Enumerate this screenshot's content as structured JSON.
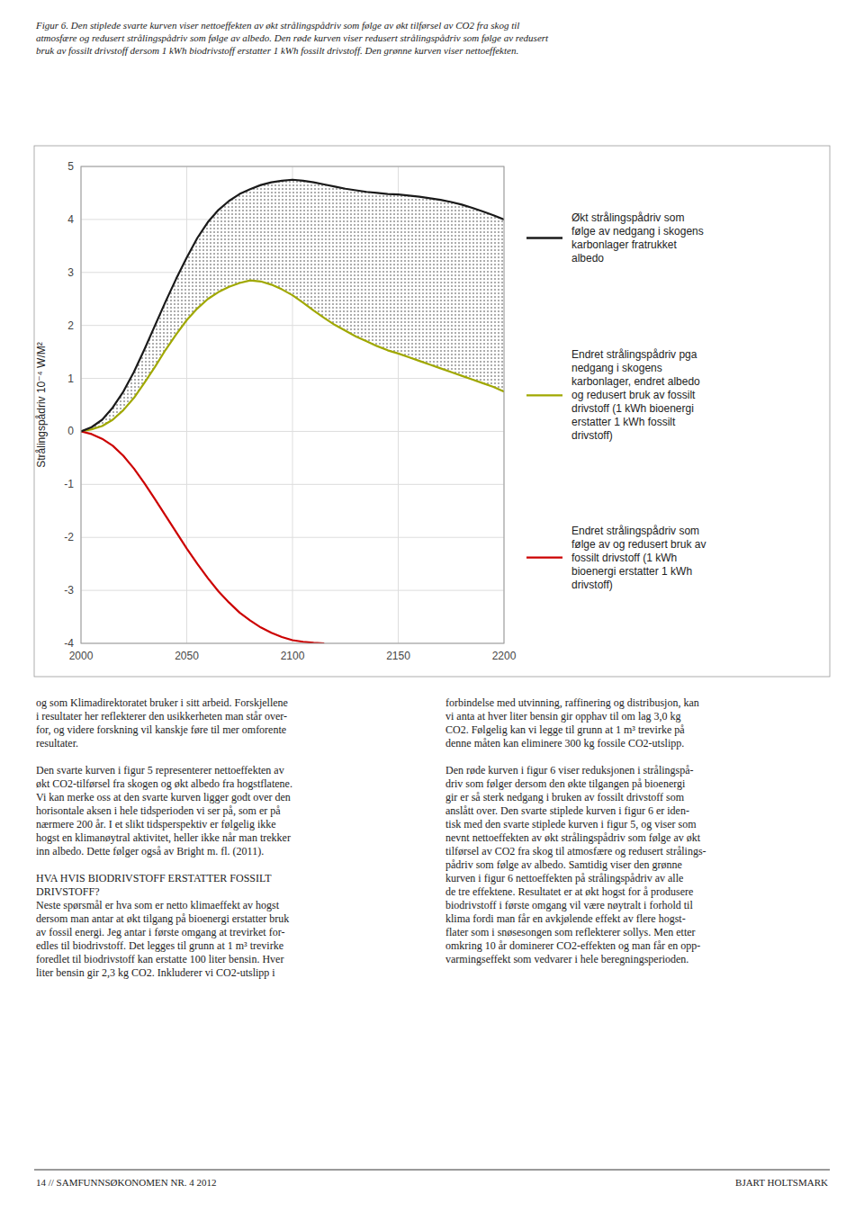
{
  "chart_data": {
    "type": "line",
    "title": "Figur 6. Den stiplede svarte kurven viser nettoeffekten av økt strålingspådriv som følge av økt tilførsel av CO2 fra skog til\natmosfære og redusert strålingspådriv som følge av albedo. Den røde kurven viser redusert strålingspådriv som følge av redusert\nbruk av fossilt drivstoff dersom 1 kWh biodrivstoff erstatter 1 kWh fossilt drivstoff. Den grønne kurven viser nettoeffekten.",
    "y_label": "Strålingspådriv 10⁻⁴ W/M²",
    "x": [
      2000,
      2005,
      2010,
      2015,
      2020,
      2025,
      2030,
      2035,
      2040,
      2045,
      2050,
      2055,
      2060,
      2065,
      2070,
      2075,
      2080,
      2085,
      2090,
      2095,
      2100,
      2105,
      2110,
      2115,
      2120,
      2125,
      2130,
      2135,
      2140,
      2145,
      2150,
      2155,
      2160,
      2165,
      2170,
      2175,
      2180,
      2185,
      2190,
      2195,
      2200
    ],
    "series": [
      {
        "name": "Økt strålingspådriv som\nfølge av nedgang i skogens\nkarbonlager fratrukket\nalbedo",
        "color": "#1a1a1a",
        "values": [
          0,
          0.08,
          0.22,
          0.45,
          0.75,
          1.12,
          1.55,
          2.0,
          2.45,
          2.88,
          3.28,
          3.65,
          3.95,
          4.18,
          4.35,
          4.48,
          4.57,
          4.65,
          4.7,
          4.73,
          4.75,
          4.73,
          4.7,
          4.66,
          4.62,
          4.58,
          4.55,
          4.52,
          4.5,
          4.48,
          4.47,
          4.45,
          4.43,
          4.4,
          4.37,
          4.33,
          4.28,
          4.22,
          4.15,
          4.08,
          4.0
        ]
      },
      {
        "name": "Endret strålingspådriv pga\nnedgang i skogens\nkarbonlager, endret albedo\nog redusert bruk av fossilt\ndrivstoff (1 kWh bioenergi\nerstatter 1 kWh fossilt\ndrivstoff)",
        "color": "#a0a800",
        "values": [
          0,
          0.04,
          0.1,
          0.22,
          0.4,
          0.63,
          0.92,
          1.22,
          1.54,
          1.83,
          2.1,
          2.32,
          2.5,
          2.63,
          2.73,
          2.8,
          2.85,
          2.83,
          2.77,
          2.68,
          2.57,
          2.43,
          2.28,
          2.14,
          2.01,
          1.9,
          1.79,
          1.7,
          1.61,
          1.53,
          1.47,
          1.4,
          1.33,
          1.26,
          1.19,
          1.12,
          1.05,
          0.98,
          0.91,
          0.84,
          0.75
        ]
      },
      {
        "name": "Endret strålingspådriv som\nfølge av og redusert bruk av\nfossilt drivstoff (1 kWh\nbioenergi erstatter 1 kWh\ndrivstoff)",
        "color": "#cc0000",
        "values": [
          0,
          -0.05,
          -0.14,
          -0.27,
          -0.46,
          -0.7,
          -0.98,
          -1.28,
          -1.59,
          -1.9,
          -2.21,
          -2.5,
          -2.77,
          -3.02,
          -3.23,
          -3.42,
          -3.57,
          -3.7,
          -3.8,
          -3.88,
          -3.94,
          -3.97,
          -3.99,
          -4.0,
          null,
          null,
          null,
          null,
          null,
          null,
          null,
          null,
          null,
          null,
          null,
          null,
          null,
          null,
          null,
          null,
          null
        ]
      }
    ],
    "xlim": [
      2000,
      2200
    ],
    "ylim": [
      -4,
      5
    ],
    "xticks": [
      2000,
      2050,
      2100,
      2150,
      2200
    ],
    "yticks": [
      -4,
      -3,
      -2,
      -1,
      0,
      1,
      2,
      3,
      4,
      5
    ],
    "grid": true,
    "legend": "right"
  },
  "page": {
    "footer_left_col": "og som Klimadirektoratet bruker i sitt arbeid. Forskjellene\ni resultater her reflekterer den usikkerheten man står over-\nfor, og videre forskning vil kanskje føre til mer omforente\nresultater.\n\nDen svarte kurven i figur 5 representerer nettoeffekten av\nøkt CO2-tilførsel fra skogen og økt albedo fra hogstflatene.\nVi kan merke oss at den svarte kurven ligger godt over den\nhorisontale aksen i hele tidsperioden vi ser på, som er på\nnærmere 200 år. I et slikt tidsperspektiv er følgelig ikke\nhogst en klimanøytral aktivitet, heller ikke når man trekker\ninn albedo. Dette følger også av Bright m. fl. (2011).\n\nHVA HVIS BIODRIVSTOFF ERSTATTER FOSSILT\nDRIVSTOFF?\nNeste spørsmål er hva som er netto klimaeffekt av hogst\ndersom man antar at økt tilgang på bioenergi erstatter bruk\nav fossil energi. Jeg antar i første omgang at trevirket for-\nedles til biodrivstoff. Det legges til grunn at 1 m³ trevirke\nforedlet til biodrivstoff kan erstatte 100 liter bensin. Hver\nliter bensin gir 2,3 kg CO2. Inkluderer vi CO2-utslipp i",
    "footer_right_col": "forbindelse med utvinning, raffinering og distribusjon, kan\nvi anta at hver liter bensin gir opphav til om lag 3,0 kg\nCO2. Følgelig kan vi legge til grunn at 1 m³ trevirke på\ndenne måten kan eliminere 300 kg fossile CO2-utslipp.\n\nDen røde kurven i figur 6 viser reduksjonen i strålingspå-\ndriv som følger dersom den økte tilgangen på bioenergi\ngir er så sterk nedgang i bruken av fossilt drivstoff som\nanslått over. Den svarte stiplede kurven i figur 6 er iden-\ntisk med den svarte stiplede kurven i figur 5, og viser som\nnevnt nettoeffekten av økt strålingspådriv som følge av økt\ntilførsel av CO2 fra skog til atmosfære og redusert strålings-\npådriv som følge av albedo. Samtidig viser den grønne\nkurven i figur 6 nettoeffekten på strålingspådriv av alle\nde tre effektene. Resultatet er at økt hogst for å produsere\nbiodrivstoff i første omgang vil være nøytralt i forhold til\nklima fordi man får en avkjølende effekt av flere hogst-\nflater som i snøsesongen som reflekterer sollys. Men etter\nomkring 10 år dominerer CO2-effekten og man får en opp-\nvarmingseffekt som vedvarer i hele beregningsperioden.",
    "page_footer": "14 // SAMFUNNSØKONOMEN NR. 4 2012",
    "page_footer_right": "BJART HOLTSMARK"
  }
}
